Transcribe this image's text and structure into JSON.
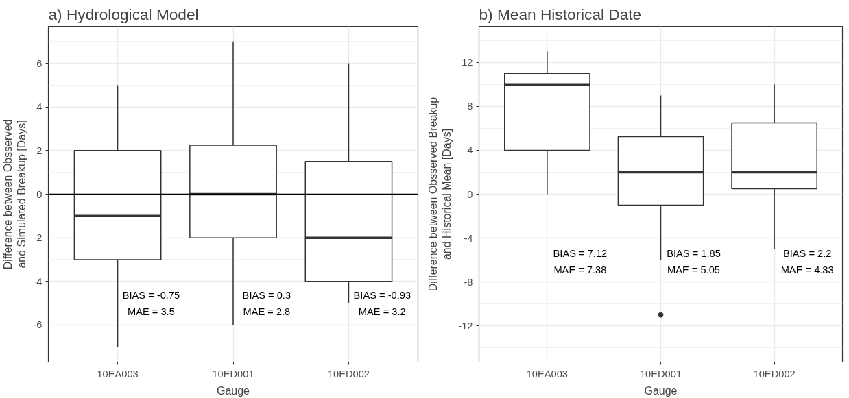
{
  "chart_data": [
    {
      "type": "box",
      "title": "a) Hydrological Model",
      "xlabel": "Gauge",
      "ylabel": "Difference between Obsserved\nand Simulated Breakup [Days]",
      "categories": [
        "10EA003",
        "10ED001",
        "10ED002"
      ],
      "boxes": [
        {
          "low": -7,
          "q1": -3,
          "median": -1,
          "q3": 2,
          "high": 5
        },
        {
          "low": -6,
          "q1": -2,
          "median": 0,
          "q3": 2.25,
          "high": 7
        },
        {
          "low": -5,
          "q1": -4,
          "median": -2,
          "q3": 1.5,
          "high": 6
        }
      ],
      "ylim": [
        -7.7,
        7.7
      ],
      "yticks": [
        -6,
        -4,
        -2,
        0,
        2,
        4,
        6
      ],
      "grid": true,
      "ref_lines": [
        {
          "axis": "y",
          "value": 0,
          "color": "#000000"
        }
      ],
      "annotations": [
        "BIAS = -0.75\nMAE = 3.5",
        "BIAS = 0.3\nMAE = 2.8",
        "BIAS = -0.93\nMAE = 3.2"
      ]
    },
    {
      "type": "box",
      "title": "b) Mean Historical Date",
      "xlabel": "Gauge",
      "ylabel": "Difference between Obsserved Breakup\nand Historical Mean [Days]",
      "categories": [
        "10EA003",
        "10ED001",
        "10ED002"
      ],
      "boxes": [
        {
          "low": 0,
          "q1": 4,
          "median": 10,
          "q3": 11,
          "high": 13
        },
        {
          "low": -6,
          "q1": -1,
          "median": 2,
          "q3": 5.25,
          "high": 9,
          "outliers": [
            -11
          ]
        },
        {
          "low": -5,
          "q1": 0.5,
          "median": 2,
          "q3": 6.5,
          "high": 10
        }
      ],
      "ylim": [
        -15.3,
        15.3
      ],
      "yticks": [
        -12,
        -8,
        -4,
        0,
        4,
        8,
        12
      ],
      "grid": true,
      "annotations": [
        "BIAS = 7.12\nMAE = 7.38",
        "BIAS = 1.85\nMAE = 5.05",
        "BIAS = 2.2\nMAE = 4.33"
      ]
    }
  ]
}
